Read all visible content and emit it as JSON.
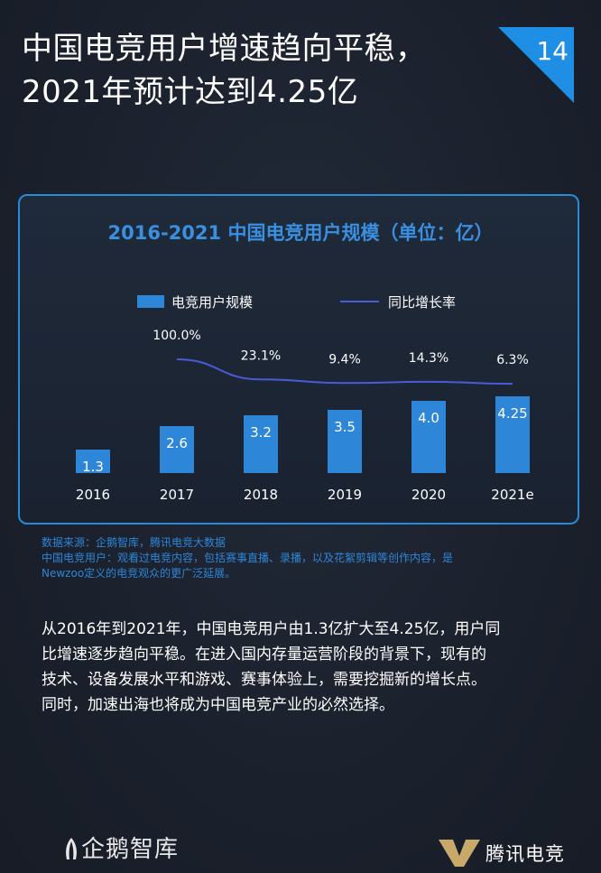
{
  "header": {
    "title_line1": "中国电竞用户增速趋向平稳，",
    "title_line2": "2021年预计达到4.25亿",
    "page_number": "14"
  },
  "chart_data": {
    "type": "bar",
    "title": "2016-2021 中国电竞用户规模（单位：亿）",
    "categories": [
      "2016",
      "2017",
      "2018",
      "2019",
      "2020",
      "2021e"
    ],
    "series": [
      {
        "name": "电竞用户规模",
        "type": "bar",
        "values": [
          1.3,
          2.6,
          3.2,
          3.5,
          4.0,
          4.25
        ],
        "labels": [
          "1.3",
          "2.6",
          "3.2",
          "3.5",
          "4.0",
          "4.25"
        ],
        "color": "#2e86d8"
      },
      {
        "name": "同比增长率",
        "type": "line",
        "values": [
          null,
          100.0,
          23.1,
          9.4,
          14.3,
          6.3
        ],
        "labels": [
          "",
          "100.0%",
          "23.1%",
          "9.4%",
          "14.3%",
          "6.3%"
        ],
        "color": "#4a5bd6"
      }
    ],
    "ylim": [
      0,
      5
    ],
    "grid": false,
    "legend_position": "top-left"
  },
  "source": {
    "line1": "数据来源：企鹅智库，腾讯电竞大数据",
    "line2": "中国电竞用户：观看过电竞内容，包括赛事直播、录播，以及花絮剪辑等创作内容，是",
    "line3": "Newzoo定义的电竞观众的更广泛延展。"
  },
  "body": {
    "line1": "从2016年到2021年，中国电竞用户由1.3亿扩大至4.25亿，用户同",
    "line2": "比增速逐步趋向平稳。在进入国内存量运营阶段的背景下，现有的",
    "line3": "技术、设备发展水平和游戏、赛事体验上，需要挖掘新的增长点。",
    "line4": "同时，加速出海也将成为中国电竞产业的必然选择。"
  },
  "footer": {
    "left_brand": "企鹅智库",
    "right_brand": "腾讯电竞"
  },
  "colors": {
    "accent": "#2e86d8",
    "line": "#4a5bd6",
    "title_blue": "#3a8fe0"
  }
}
